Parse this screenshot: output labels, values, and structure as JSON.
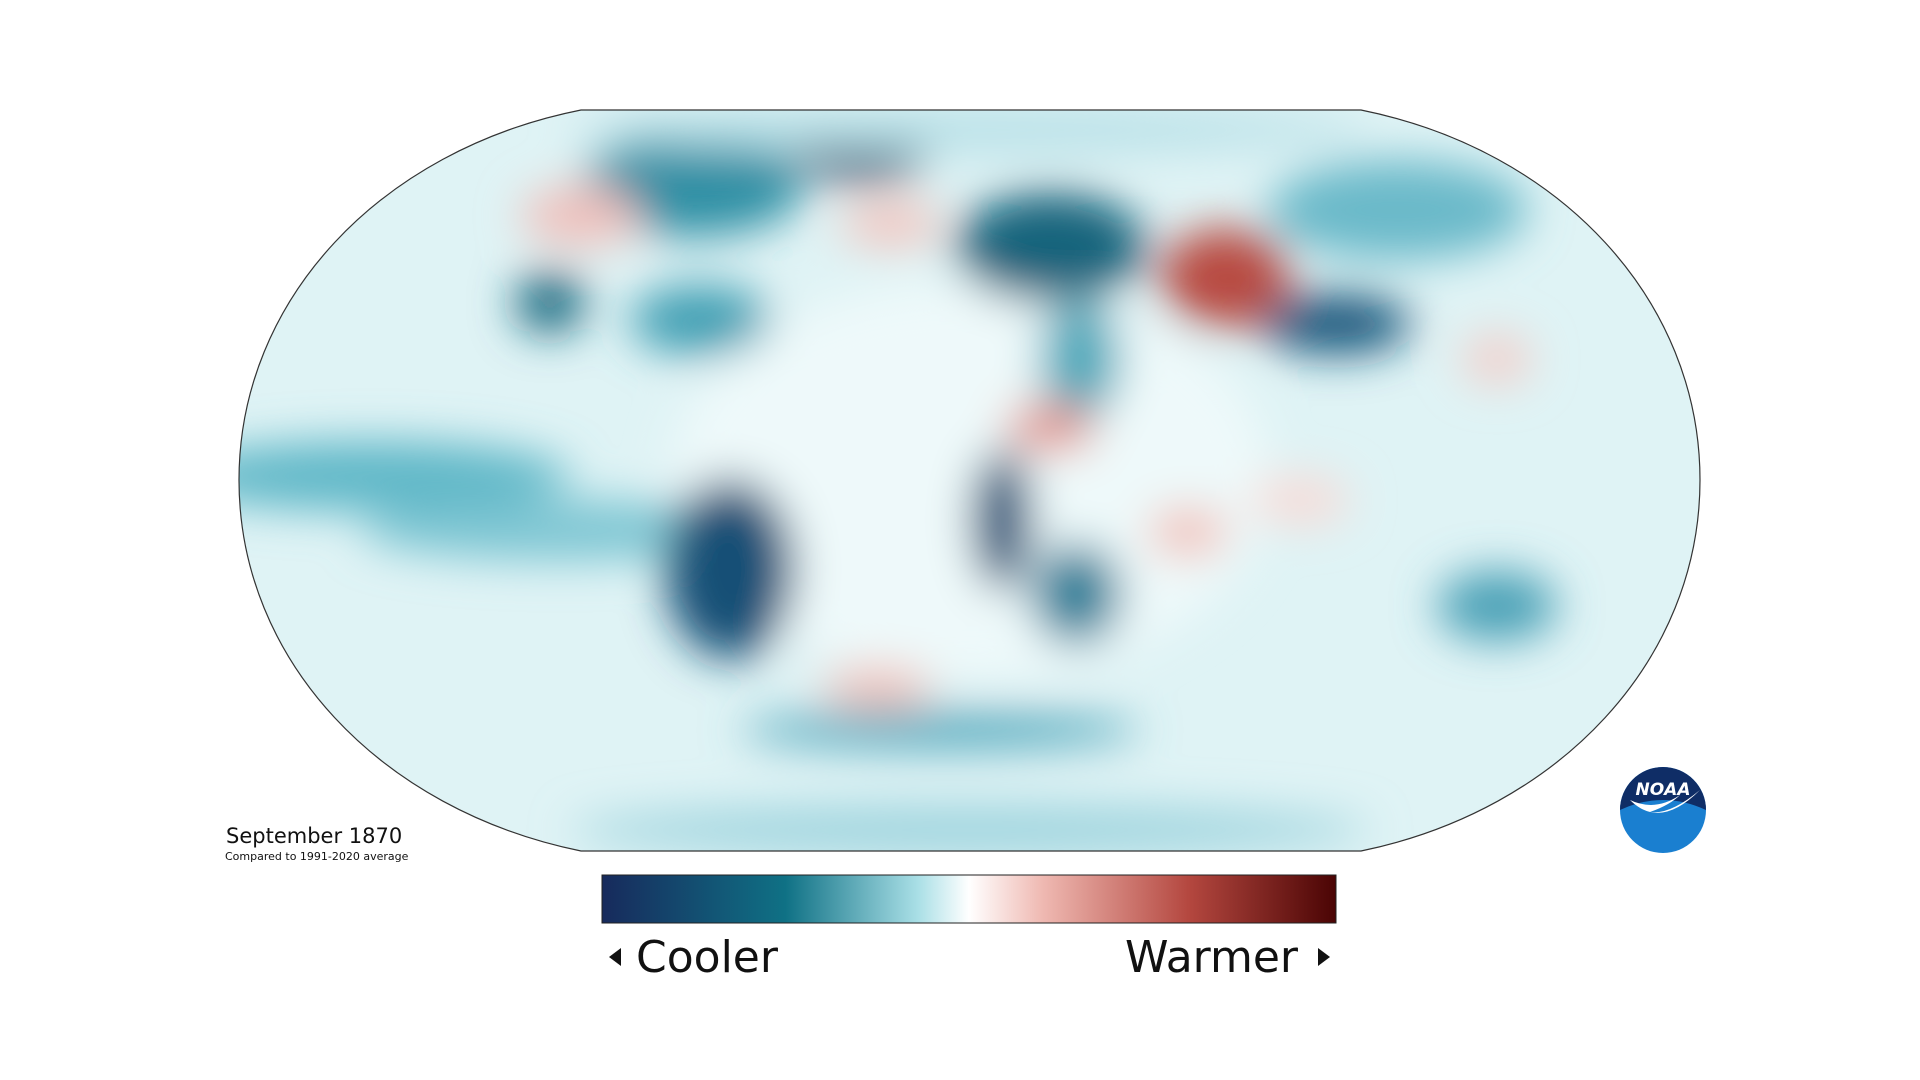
{
  "map": {
    "title": "September 1870",
    "subtitle": "Compared to 1991-2020 average",
    "legend": {
      "low": "Cooler",
      "high": "Warmer"
    },
    "logo": "NOAA"
  }
}
